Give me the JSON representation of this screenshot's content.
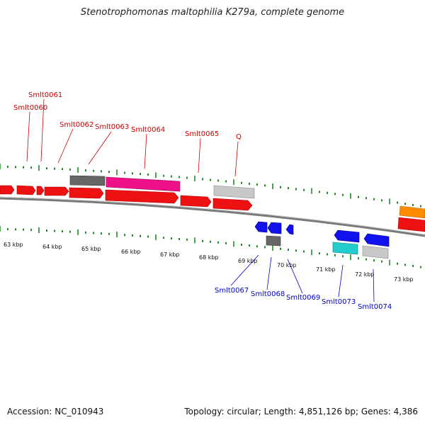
{
  "header": {
    "title": "Stenotrophomonas maltophilia K279a, complete genome"
  },
  "footer": {
    "accession": "Accession: NC_010943",
    "topology": "Topology: circular; Length: 4,851,126 bp; Genes: 4,386"
  },
  "colors": {
    "forward_label": "#cc0000",
    "reverse_label": "#0000cc",
    "tick": "#228b22",
    "backbone": "#808080"
  },
  "genes_forward": [
    {
      "label": "Smlt0061"
    },
    {
      "label": "Smlt0060"
    },
    {
      "label": "Smlt0062"
    },
    {
      "label": "Smlt0063"
    },
    {
      "label": "Smlt0064"
    },
    {
      "label": "Smlt0065"
    },
    {
      "label": "Q"
    }
  ],
  "genes_reverse": [
    {
      "label": "Smlt0067"
    },
    {
      "label": "Smlt0068"
    },
    {
      "label": "Smlt0069"
    },
    {
      "label": "Smlt0073"
    },
    {
      "label": "Smlt0074"
    }
  ],
  "kbp_labels": [
    "63 kbp",
    "64 kbp",
    "65 kbp",
    "66 kbp",
    "67 kbp",
    "68 kbp",
    "69 kbp",
    "70 kbp",
    "71 kbp",
    "72 kbp",
    "73 kbp"
  ]
}
